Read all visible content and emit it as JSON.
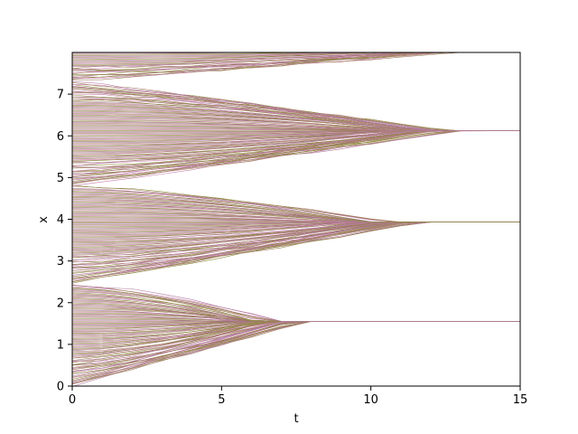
{
  "chart_data": {
    "type": "line",
    "title": "",
    "xlabel": "t",
    "ylabel": "x",
    "xlim": [
      0,
      15
    ],
    "ylim": [
      0,
      8
    ],
    "xticks": [
      0,
      5,
      10,
      15
    ],
    "yticks": [
      0,
      1,
      2,
      3,
      4,
      5,
      6,
      7
    ],
    "grid": false,
    "legend": "none",
    "colors": [
      "#b07aa1",
      "#9c755f",
      "#8c8c3c",
      "#c77cae",
      "#a2845e"
    ],
    "clusters": [
      {
        "center": 1.55,
        "x0_range": [
          0.0,
          2.45
        ],
        "merge_t_range": [
          4.0,
          7.0
        ]
      },
      {
        "center": 3.93,
        "x0_range": [
          2.45,
          4.8
        ],
        "merge_t_range": [
          7.0,
          11.0
        ]
      },
      {
        "center": 6.12,
        "x0_range": [
          4.8,
          7.3
        ],
        "merge_t_range": [
          9.0,
          12.0
        ]
      },
      {
        "center": 8.05,
        "x0_range": [
          7.3,
          8.0
        ],
        "merge_t_range": [
          9.0,
          13.0
        ]
      }
    ],
    "n_series": 330,
    "t_step": 1
  },
  "axes": {
    "xlabel": "t",
    "ylabel": "x",
    "xtick_labels": [
      "0",
      "5",
      "10",
      "15"
    ],
    "ytick_labels": [
      "0",
      "1",
      "2",
      "3",
      "4",
      "5",
      "6",
      "7"
    ]
  }
}
